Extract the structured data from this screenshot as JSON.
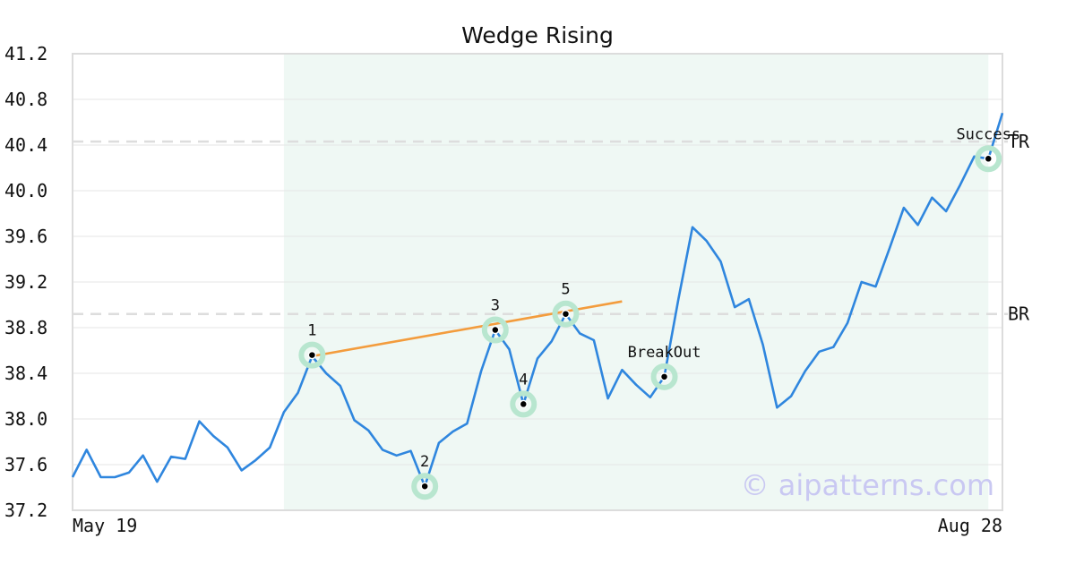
{
  "chart_data": {
    "type": "line",
    "title": "Wedge Rising",
    "xlabel": "",
    "ylabel": "",
    "ylim": [
      37.2,
      41.2
    ],
    "y_ticks": [
      37.2,
      37.6,
      38.0,
      38.4,
      38.8,
      39.2,
      39.6,
      40.0,
      40.4,
      40.8,
      41.2
    ],
    "y_tick_labels": [
      "37.2",
      "37.6",
      "38.0",
      "38.4",
      "38.8",
      "39.2",
      "39.6",
      "40.0",
      "40.4",
      "40.8",
      "41.2"
    ],
    "x_tick_labels": [
      {
        "index": 0,
        "label": "May 19"
      },
      {
        "index": 67,
        "label": "Aug 28"
      }
    ],
    "grid": "horizontal",
    "series": [
      {
        "color": "#2f86de",
        "values": [
          37.49,
          37.73,
          37.49,
          37.49,
          37.53,
          37.68,
          37.45,
          37.67,
          37.65,
          37.98,
          37.85,
          37.75,
          37.55,
          37.64,
          37.75,
          38.06,
          38.23,
          38.55,
          38.4,
          38.29,
          37.99,
          37.9,
          37.73,
          37.68,
          37.72,
          37.41,
          37.79,
          37.89,
          37.96,
          38.42,
          38.78,
          38.61,
          38.13,
          38.53,
          38.68,
          38.92,
          38.75,
          38.69,
          38.18,
          38.43,
          38.3,
          38.19,
          38.37,
          39.05,
          39.68,
          39.56,
          39.38,
          38.98,
          39.05,
          38.65,
          38.1,
          38.2,
          38.42,
          38.59,
          38.63,
          38.84,
          39.2,
          39.16,
          39.5,
          39.85,
          39.7,
          39.94,
          39.82,
          40.05,
          40.3,
          40.28,
          40.68
        ]
      }
    ],
    "trend_line": {
      "color": "#f39c3d",
      "from": {
        "index": 17,
        "value": 38.55
      },
      "to": {
        "index": 39,
        "value": 39.03
      }
    },
    "reference_lines": [
      {
        "label": "TR",
        "value": 40.43
      },
      {
        "label": "BR",
        "value": 38.92
      }
    ],
    "highlight_range": {
      "from_index": 15,
      "to_index": 65,
      "color": "#eff8f4"
    },
    "pattern_points": [
      {
        "label": "1",
        "index": 17,
        "value": 38.56
      },
      {
        "label": "2",
        "index": 25,
        "value": 37.41
      },
      {
        "label": "3",
        "index": 30,
        "value": 38.78
      },
      {
        "label": "4",
        "index": 32,
        "value": 38.13
      },
      {
        "label": "5",
        "index": 35,
        "value": 38.92
      },
      {
        "label": "BreakOut",
        "index": 42,
        "value": 38.37
      },
      {
        "label": "Success",
        "index": 65,
        "value": 40.28
      }
    ],
    "watermark": "© aipatterns.com"
  }
}
